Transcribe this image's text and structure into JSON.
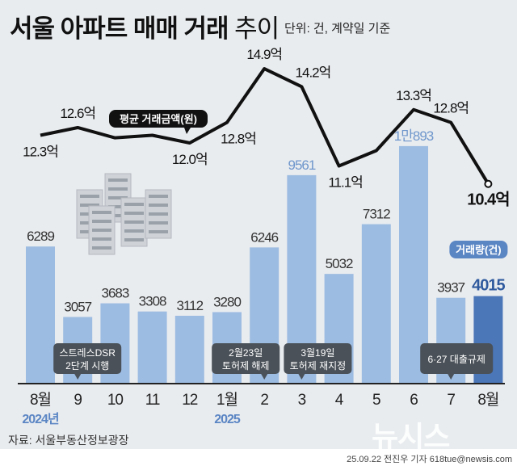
{
  "header": {
    "title_bold": "서울 아파트 매매 거래",
    "title_thin": "추이",
    "unit": "단위: 건, 계약일 기준"
  },
  "chart_data": {
    "type": "bar+line",
    "title": "서울 아파트 매매 거래 추이",
    "categories": [
      "8월",
      "9",
      "10",
      "11",
      "12",
      "1월",
      "2",
      "3",
      "4",
      "5",
      "6",
      "7",
      "8월"
    ],
    "year_labels": [
      {
        "index": 0,
        "label": "2024년"
      },
      {
        "index": 5,
        "label": "2025"
      }
    ],
    "bar_series": {
      "name": "거래량(건)",
      "values": [
        6289,
        3057,
        3683,
        3308,
        3112,
        3280,
        6246,
        9561,
        5032,
        7312,
        10893,
        3937,
        4015
      ],
      "labels": [
        "6289",
        "3057",
        "3683",
        "3308",
        "3112",
        "3280",
        "6246",
        "9561",
        "5032",
        "7312",
        "1만893",
        "3937",
        "4015"
      ]
    },
    "line_series": {
      "name": "평균 거래금액(원)",
      "values": [
        12.3,
        12.6,
        12.2,
        12.3,
        12.0,
        12.8,
        14.9,
        14.2,
        11.1,
        11.7,
        13.3,
        12.8,
        10.4
      ],
      "labels": [
        "12.3억",
        "12.6억",
        "",
        "",
        "12.0억",
        "12.8억",
        "14.9억",
        "14.2억",
        "11.1억",
        "",
        "13.3억",
        "12.8억",
        "10.4억"
      ]
    },
    "events": [
      {
        "index": 1,
        "line1": "스트레스DSR",
        "line2": "2단계 시행"
      },
      {
        "index": 6,
        "line1": "2월23일",
        "line2": "토허제 해제"
      },
      {
        "index": 7,
        "line1": "3월19일",
        "line2": "토허제 재지정"
      },
      {
        "index": 11,
        "line1": "",
        "line2": "6·27 대출규제"
      }
    ],
    "colors": {
      "bar": "#9dbce2",
      "bar_last": "#4b76b8",
      "line": "#111111",
      "highlight_label": "#6e96cc"
    }
  },
  "source": "자료: 서울부동산정보광장",
  "credit": "25.09.22 전진우 기자 618tue@newsis.com",
  "logo": "뉴시스"
}
